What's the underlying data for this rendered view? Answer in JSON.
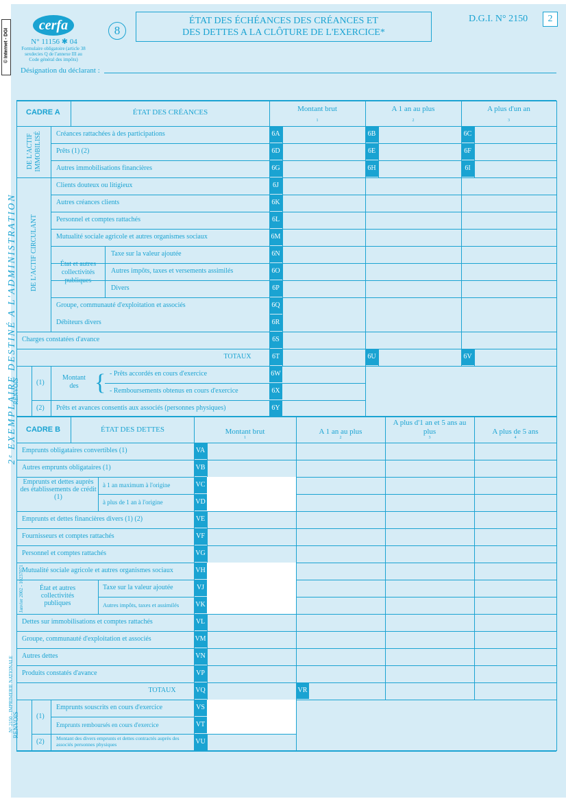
{
  "header": {
    "logo": "cerfa",
    "form_number": "N° 11156 ✱ 04",
    "form_note": "Formulaire obligatoire (article 38 sexdecies Q de l'annexe III au Code général des impôts)",
    "sheet_number": "8",
    "title_line1": "ÉTAT DES ÉCHÉANCES DES CRÉANCES ET",
    "title_line2": "DES DETTES A LA CLÔTURE DE L'EXERCICE*",
    "dgi": "D.G.I. N° 2150",
    "page_box": "2",
    "declarant_label": "Désignation du déclarant :",
    "internet_stamp": "© Internet - DGI",
    "side_title": "2ᵉ EXEMPLAIRE DESTINÉ A L'ADMINISTRATION",
    "printer_note": "N° 2150 - IMPRIMERIE NATIONALE",
    "print_date": "Janvier 2002 - 10237071"
  },
  "cadre_a": {
    "label": "CADRE A",
    "title": "ÉTAT DES CRÉANCES",
    "columns": [
      {
        "label": "Montant brut",
        "num": "1"
      },
      {
        "label": "A 1 an au plus",
        "num": "2"
      },
      {
        "label": "A plus d'un an",
        "num": "3"
      }
    ],
    "group_actif_immobilise": "DE L'ACTIF IMMOBILISÉ",
    "group_actif_circulant": "DE L'ACTIF CIRCULANT",
    "etat_label": "État et autres collectivités publiques",
    "rows": [
      {
        "label": "Créances rattachées à des participations",
        "c1": "6A",
        "c2": "6B",
        "c3": "6C"
      },
      {
        "label": "Prêts (1) (2)",
        "c1": "6D",
        "c2": "6E",
        "c3": "6F"
      },
      {
        "label": "Autres immobilisations financières",
        "c1": "6G",
        "c2": "6H",
        "c3": "6I"
      },
      {
        "label": "Clients douteux ou litigieux",
        "c1": "6J"
      },
      {
        "label": "Autres créances clients",
        "c1": "6K"
      },
      {
        "label": "Personnel et comptes rattachés",
        "c1": "6L"
      },
      {
        "label": "Mutualité sociale agricole et autres organismes sociaux",
        "c1": "6M"
      },
      {
        "label": "Taxe sur la valeur ajoutée",
        "c1": "6N"
      },
      {
        "label": "Autres impôts, taxes et versements assimilés",
        "c1": "6O"
      },
      {
        "label": "Divers",
        "c1": "6P"
      },
      {
        "label": "Groupe, communauté d'exploitation et associés",
        "c1": "6Q"
      },
      {
        "label": "Débiteurs divers",
        "c1": "6R"
      },
      {
        "label": "Charges constatées d'avance",
        "c1": "6S"
      },
      {
        "label": "TOTAUX",
        "c1": "6T",
        "c2": "6U",
        "c3": "6V"
      }
    ],
    "renvois": {
      "label": "RENVOIS",
      "n1": "(1)",
      "montant": "Montant des",
      "row1": "- Prêts accordés en cours d'exercice",
      "row1_code": "6W",
      "row2": "- Remboursements obtenus en cours d'exercice",
      "row2_code": "6X",
      "n2": "(2)",
      "row3": "Prêts et avances consentis aux associés (personnes physiques)",
      "row3_code": "6Y"
    }
  },
  "cadre_b": {
    "label": "CADRE B",
    "title": "ÉTAT DES DETTES",
    "columns": [
      {
        "label": "Montant brut",
        "num": "1"
      },
      {
        "label": "A 1 an au plus",
        "num": "2"
      },
      {
        "label": "A plus d'1 an et 5 ans au plus",
        "num": "3"
      },
      {
        "label": "A plus de 5 ans",
        "num": "4"
      }
    ],
    "emprunts_label": "Emprunts et dettes auprès des établissements de crédit (1)",
    "etat_label": "État et autres collectivités publiques",
    "rows": [
      {
        "label": "Emprunts obligataires convertibles (1)",
        "code": "VA"
      },
      {
        "label": "Autres emprunts obligataires (1)",
        "code": "VB"
      },
      {
        "label": "à 1 an maximum à l'origine",
        "code": "VC"
      },
      {
        "label": "à plus de 1 an à l'origine",
        "code": "VD"
      },
      {
        "label": "Emprunts et dettes financières divers (1) (2)",
        "code": "VE"
      },
      {
        "label": "Fournisseurs et comptes rattachés",
        "code": "VF"
      },
      {
        "label": "Personnel et comptes rattachés",
        "code": "VG"
      },
      {
        "label": "Mutualité sociale agricole et autres organismes sociaux",
        "code": "VH"
      },
      {
        "label": "Taxe sur la valeur ajoutée",
        "code": "VJ"
      },
      {
        "label": "Autres impôts, taxes et assimilés",
        "code": "VK"
      },
      {
        "label": "Dettes sur immobilisations et comptes rattachés",
        "code": "VL"
      },
      {
        "label": "Groupe, communauté d'exploitation et associés",
        "code": "VM"
      },
      {
        "label": "Autres dettes",
        "code": "VN"
      },
      {
        "label": "Produits constatés d'avance",
        "code": "VP"
      },
      {
        "label": "TOTAUX",
        "code": "VQ",
        "code2": "VR"
      }
    ],
    "renvois": {
      "label": "RENVOIS",
      "n1": "(1)",
      "row1": "Emprunts souscrits en cours d'exercice",
      "row1_code": "VS",
      "row2": "Emprunts remboursés en cours d'exercice",
      "row2_code": "VT",
      "n2": "(2)",
      "row3": "Montant des divers emprunts et dettes contractés auprès des associés personnes physiques",
      "row3_code": "VU"
    }
  }
}
